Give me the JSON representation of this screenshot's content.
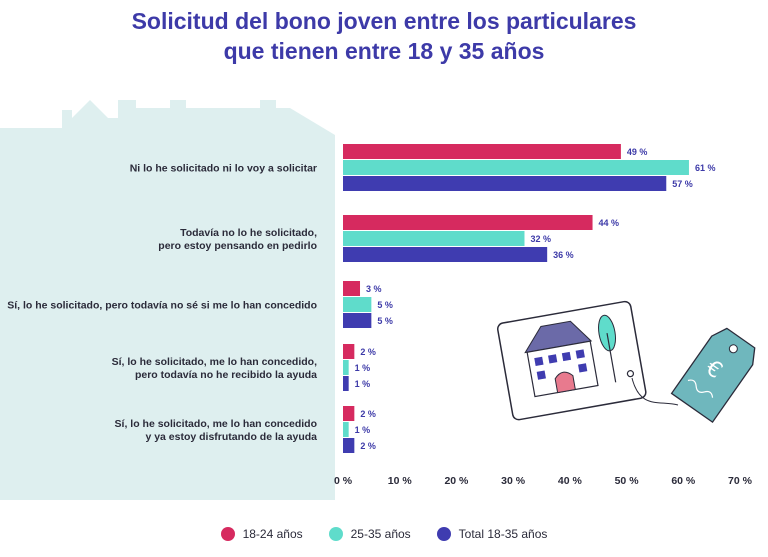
{
  "chart_data": {
    "type": "bar",
    "orientation": "horizontal",
    "title_lines": [
      "Solicitud del bono joven entre los particulares",
      "que tienen entre 18 y 35 años"
    ],
    "categories": [
      [
        "Ni lo he solicitado ni lo voy a solicitar"
      ],
      [
        "Todavía no lo he solicitado,",
        "pero estoy pensando en pedirlo"
      ],
      [
        "Sí, lo he solicitado, pero todavía no sé si me lo han concedido"
      ],
      [
        "Sí, lo he solicitado, me lo han concedido,",
        "pero todavía no he recibido la ayuda"
      ],
      [
        "Sí, lo he solicitado, me lo han concedido",
        "y ya estoy disfrutando de la ayuda"
      ]
    ],
    "series": [
      {
        "name": "18-24 años",
        "color": "#d62a5f",
        "values": [
          49,
          44,
          3,
          2,
          2
        ]
      },
      {
        "name": "25-35 años",
        "color": "#5fdccb",
        "values": [
          61,
          32,
          5,
          1,
          1
        ]
      },
      {
        "name": "Total 18-35 años",
        "color": "#3f3cb0",
        "values": [
          57,
          36,
          5,
          1,
          2
        ]
      }
    ],
    "value_suffix": " %",
    "xlim": [
      0,
      70
    ],
    "xticks": [
      0,
      10,
      20,
      30,
      40,
      50,
      60,
      70
    ],
    "tick_labels": [
      "0 %",
      "10 %",
      "20 %",
      "30 %",
      "40 %",
      "50 %",
      "60 %",
      "70 %"
    ],
    "grid": false,
    "legend_position": "bottom"
  },
  "background_colors": {
    "house_shape": "#deefef",
    "title": "#3d3aa8"
  },
  "illustration": {
    "icon": "house-price-tag-euro-icon"
  }
}
